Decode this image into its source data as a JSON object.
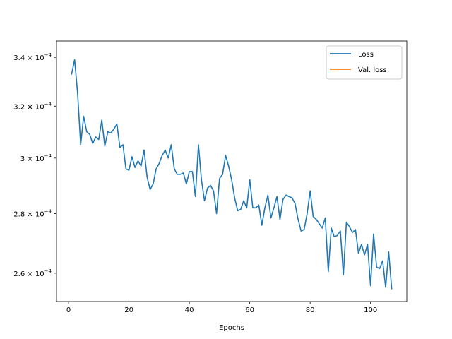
{
  "chart_data": {
    "type": "line",
    "title": "",
    "xlabel": "Epochs",
    "ylabel": "",
    "yscale": "log",
    "xlim": [
      -4,
      112
    ],
    "ylim": [
      0.000251,
      0.000347
    ],
    "grid": false,
    "legend": {
      "placement": "top-right",
      "entries": [
        {
          "name": "Loss",
          "color": "#1f77b4"
        },
        {
          "name": "Val. loss",
          "color": "#ff7f0e"
        }
      ]
    },
    "x_ticks": [
      {
        "value": 0,
        "label": "0"
      },
      {
        "value": 20,
        "label": "20"
      },
      {
        "value": 40,
        "label": "40"
      },
      {
        "value": 60,
        "label": "60"
      },
      {
        "value": 80,
        "label": "80"
      },
      {
        "value": 100,
        "label": "100"
      }
    ],
    "y_ticks": [
      {
        "value": 0.00026,
        "mantissa": "2.6",
        "exponent": "−4"
      },
      {
        "value": 0.00028,
        "mantissa": "2.8",
        "exponent": "−4"
      },
      {
        "value": 0.0003,
        "mantissa": "3",
        "exponent": "−4"
      },
      {
        "value": 0.00032,
        "mantissa": "3.2",
        "exponent": "−4"
      },
      {
        "value": 0.00034,
        "mantissa": "3.4",
        "exponent": "−4"
      }
    ],
    "series": [
      {
        "name": "Loss",
        "color": "#1f77b4",
        "x": [
          1,
          2,
          3,
          4,
          5,
          6,
          7,
          8,
          9,
          10,
          11,
          12,
          13,
          14,
          15,
          16,
          17,
          18,
          19,
          20,
          21,
          22,
          23,
          24,
          25,
          26,
          27,
          28,
          29,
          30,
          31,
          32,
          33,
          34,
          35,
          36,
          37,
          38,
          39,
          40,
          41,
          42,
          43,
          44,
          45,
          46,
          47,
          48,
          49,
          50,
          51,
          52,
          53,
          54,
          55,
          56,
          57,
          58,
          59,
          60,
          61,
          62,
          63,
          64,
          65,
          66,
          67,
          68,
          69,
          70,
          71,
          72,
          73,
          74,
          75,
          76,
          77,
          78,
          79,
          80,
          81,
          82,
          83,
          84,
          85,
          86,
          87,
          88,
          89,
          90,
          91,
          92,
          93,
          94,
          95,
          96,
          97,
          98,
          99,
          100,
          101,
          102,
          103,
          104,
          105,
          106,
          107
        ],
        "y": [
          0.000333,
          0.000339,
          0.000325,
          0.000305,
          0.000316,
          0.00031,
          0.000309,
          0.0003055,
          0.000308,
          0.000307,
          0.0003145,
          0.0003045,
          0.00031,
          0.0003095,
          0.000311,
          0.000313,
          0.000304,
          0.000305,
          0.000296,
          0.0002955,
          0.0003005,
          0.0002965,
          0.000299,
          0.000297,
          0.000303,
          0.000293,
          0.0002885,
          0.0002905,
          0.000296,
          0.000298,
          0.000301,
          0.000303,
          0.0003,
          0.000305,
          0.000296,
          0.000294,
          0.000294,
          0.0002945,
          0.0002905,
          0.000295,
          0.000295,
          0.000286,
          0.000305,
          0.000292,
          0.0002845,
          0.000289,
          0.00029,
          0.000288,
          0.00028,
          0.0002925,
          0.000294,
          0.000301,
          0.000297,
          0.000292,
          0.0002855,
          0.000281,
          0.0002815,
          0.0002845,
          0.000282,
          0.000292,
          0.000282,
          0.000282,
          0.000283,
          0.000276,
          0.000282,
          0.0002865,
          0.0002785,
          0.000282,
          0.000286,
          0.000278,
          0.000285,
          0.0002865,
          0.000286,
          0.0002855,
          0.0002835,
          0.000278,
          0.000274,
          0.0002745,
          0.00028,
          0.000288,
          0.000279,
          0.000278,
          0.0002765,
          0.000275,
          0.0002785,
          0.0002605,
          0.000275,
          0.000272,
          0.0002725,
          0.000274,
          0.0002595,
          0.000277,
          0.0002755,
          0.0002735,
          0.0002745,
          0.0002665,
          0.0002695,
          0.000266,
          0.0002695,
          0.000256,
          0.000273,
          0.000262,
          0.0002615,
          0.000264,
          0.0002555,
          0.000267,
          0.000255
        ]
      },
      {
        "name": "Val. loss",
        "color": "#ff7f0e",
        "x": [],
        "y": []
      }
    ]
  }
}
